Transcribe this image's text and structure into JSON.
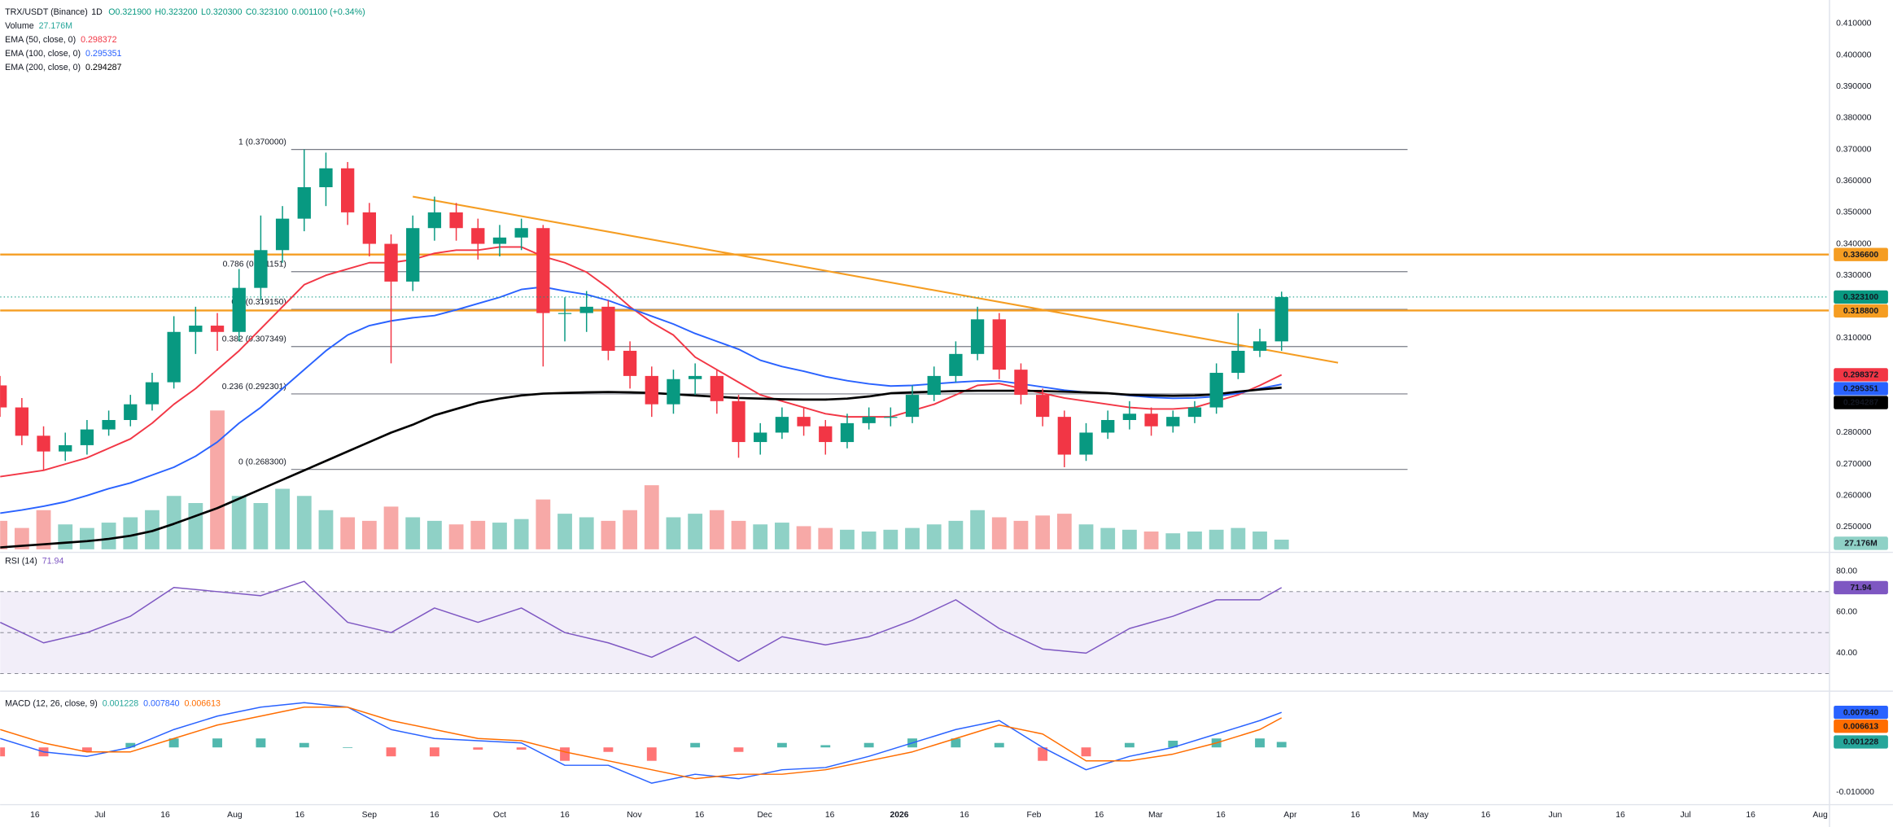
{
  "chart_data": [
    {
      "type": "candlestick",
      "title": "TRX/USDT (Binance)",
      "interval": "1D",
      "ohlc_legend": [
        "O0.321900",
        "H0.323200",
        "L0.320300",
        "C0.323100",
        "0.001100 (+0.34%)"
      ],
      "x": [
        "2025-06-08",
        "2025-06-13",
        "2025-06-18",
        "2025-06-23",
        "2025-06-28",
        "2025-07-03",
        "2025-07-08",
        "2025-07-13",
        "2025-07-18",
        "2025-07-23",
        "2025-07-28",
        "2025-08-02",
        "2025-08-07",
        "2025-08-12",
        "2025-08-17",
        "2025-08-22",
        "2025-08-27",
        "2025-09-01",
        "2025-09-06",
        "2025-09-11",
        "2025-09-16",
        "2025-09-21",
        "2025-09-26",
        "2025-10-01",
        "2025-10-06",
        "2025-10-11",
        "2025-10-16",
        "2025-10-21",
        "2025-10-26",
        "2025-10-31",
        "2025-11-05",
        "2025-11-10",
        "2025-11-15",
        "2025-11-20",
        "2025-11-25",
        "2025-11-30",
        "2025-12-05",
        "2025-12-10",
        "2025-12-15",
        "2025-12-20",
        "2025-12-25",
        "2025-12-30",
        "2026-01-04",
        "2026-01-09",
        "2026-01-14",
        "2026-01-19",
        "2026-01-24",
        "2026-01-29",
        "2026-02-03",
        "2026-02-08",
        "2026-02-13",
        "2026-02-18",
        "2026-02-23",
        "2026-02-28",
        "2026-03-05",
        "2026-03-10",
        "2026-03-15",
        "2026-03-20",
        "2026-03-25",
        "2026-03-30"
      ],
      "open": [
        0.295,
        0.288,
        0.279,
        0.274,
        0.276,
        0.281,
        0.284,
        0.289,
        0.296,
        0.312,
        0.314,
        0.312,
        0.326,
        0.338,
        0.348,
        0.358,
        0.364,
        0.35,
        0.34,
        0.328,
        0.345,
        0.35,
        0.345,
        0.34,
        0.342,
        0.345,
        0.318,
        0.318,
        0.32,
        0.306,
        0.298,
        0.289,
        0.297,
        0.298,
        0.29,
        0.277,
        0.28,
        0.285,
        0.282,
        0.277,
        0.283,
        0.285,
        0.285,
        0.292,
        0.298,
        0.305,
        0.316,
        0.3,
        0.292,
        0.285,
        0.273,
        0.28,
        0.284,
        0.286,
        0.282,
        0.285,
        0.288,
        0.299,
        0.306,
        0.309
      ],
      "high": [
        0.298,
        0.291,
        0.282,
        0.28,
        0.284,
        0.287,
        0.292,
        0.299,
        0.317,
        0.32,
        0.318,
        0.332,
        0.349,
        0.352,
        0.37,
        0.369,
        0.366,
        0.353,
        0.343,
        0.349,
        0.355,
        0.353,
        0.348,
        0.346,
        0.348,
        0.346,
        0.323,
        0.325,
        0.322,
        0.309,
        0.301,
        0.3,
        0.302,
        0.3,
        0.292,
        0.283,
        0.288,
        0.288,
        0.284,
        0.286,
        0.288,
        0.288,
        0.295,
        0.301,
        0.309,
        0.32,
        0.318,
        0.302,
        0.294,
        0.287,
        0.283,
        0.287,
        0.29,
        0.288,
        0.287,
        0.29,
        0.302,
        0.318,
        0.313,
        0.3248
      ],
      "low": [
        0.285,
        0.276,
        0.268,
        0.271,
        0.273,
        0.279,
        0.282,
        0.287,
        0.294,
        0.305,
        0.306,
        0.309,
        0.322,
        0.334,
        0.344,
        0.352,
        0.346,
        0.336,
        0.302,
        0.325,
        0.341,
        0.341,
        0.335,
        0.336,
        0.338,
        0.301,
        0.309,
        0.312,
        0.303,
        0.294,
        0.285,
        0.286,
        0.292,
        0.286,
        0.272,
        0.273,
        0.278,
        0.279,
        0.273,
        0.275,
        0.281,
        0.282,
        0.283,
        0.29,
        0.296,
        0.303,
        0.297,
        0.289,
        0.282,
        0.269,
        0.271,
        0.278,
        0.281,
        0.279,
        0.28,
        0.283,
        0.286,
        0.297,
        0.304,
        0.306
      ],
      "close": [
        0.288,
        0.279,
        0.274,
        0.276,
        0.281,
        0.284,
        0.289,
        0.296,
        0.312,
        0.314,
        0.312,
        0.326,
        0.338,
        0.348,
        0.358,
        0.364,
        0.35,
        0.34,
        0.328,
        0.345,
        0.35,
        0.345,
        0.34,
        0.342,
        0.345,
        0.318,
        0.318,
        0.32,
        0.306,
        0.298,
        0.289,
        0.297,
        0.298,
        0.29,
        0.277,
        0.28,
        0.285,
        0.282,
        0.277,
        0.283,
        0.285,
        0.285,
        0.292,
        0.298,
        0.305,
        0.316,
        0.3,
        0.292,
        0.285,
        0.273,
        0.28,
        0.284,
        0.286,
        0.282,
        0.285,
        0.288,
        0.299,
        0.306,
        0.309,
        0.3231
      ],
      "close_label": "0.323100",
      "up_color": "#089981",
      "down_color": "#f23645",
      "volume": {
        "name": "Volume",
        "up_color": "#8fd1c6",
        "down_color": "#f7a9a7",
        "value_label": "27.176M",
        "values": [
          80,
          60,
          110,
          70,
          60,
          75,
          90,
          110,
          150,
          130,
          390,
          150,
          130,
          170,
          150,
          110,
          90,
          80,
          120,
          90,
          80,
          70,
          80,
          75,
          85,
          140,
          100,
          90,
          80,
          110,
          180,
          90,
          100,
          110,
          80,
          70,
          75,
          65,
          60,
          55,
          50,
          55,
          60,
          70,
          80,
          110,
          90,
          80,
          95,
          100,
          70,
          60,
          55,
          50,
          45,
          50,
          55,
          60,
          50,
          27.176
        ]
      },
      "ema": [
        {
          "name": "EMA (50, close, 0)",
          "color": "#f23645",
          "value_label": "0.298372",
          "values": [
            0.266,
            0.267,
            0.268,
            0.27,
            0.272,
            0.275,
            0.278,
            0.283,
            0.289,
            0.294,
            0.3,
            0.306,
            0.313,
            0.32,
            0.327,
            0.33,
            0.332,
            0.334,
            0.334,
            0.335,
            0.337,
            0.338,
            0.338,
            0.339,
            0.339,
            0.336,
            0.334,
            0.331,
            0.326,
            0.32,
            0.315,
            0.311,
            0.304,
            0.3,
            0.296,
            0.292,
            0.29,
            0.288,
            0.286,
            0.285,
            0.285,
            0.285,
            0.287,
            0.289,
            0.292,
            0.295,
            0.2956,
            0.294,
            0.2925,
            0.291,
            0.29,
            0.289,
            0.288,
            0.2875,
            0.2875,
            0.288,
            0.29,
            0.292,
            0.295,
            0.298372
          ]
        },
        {
          "name": "EMA (100, close, 0)",
          "color": "#2962ff",
          "value_label": "0.295351",
          "values": [
            0.2544,
            0.2554,
            0.2566,
            0.258,
            0.26,
            0.2622,
            0.264,
            0.2665,
            0.269,
            0.2725,
            0.277,
            0.283,
            0.288,
            0.294,
            0.3,
            0.306,
            0.311,
            0.314,
            0.3155,
            0.3165,
            0.3172,
            0.319,
            0.321,
            0.323,
            0.3255,
            0.3263,
            0.325,
            0.3239,
            0.322,
            0.3195,
            0.317,
            0.3145,
            0.3115,
            0.309,
            0.3065,
            0.303,
            0.301,
            0.2995,
            0.2978,
            0.2965,
            0.2955,
            0.2948,
            0.295,
            0.2955,
            0.296,
            0.2964,
            0.2964,
            0.2955,
            0.2945,
            0.2935,
            0.2928,
            0.2925,
            0.2918,
            0.2912,
            0.2909,
            0.291,
            0.2915,
            0.2925,
            0.294,
            0.295351
          ]
        },
        {
          "name": "EMA (200, close, 0)",
          "color": "#000000",
          "value_label": "0.294287",
          "values": [
            0.2435,
            0.244,
            0.2445,
            0.245,
            0.2455,
            0.2462,
            0.2472,
            0.2487,
            0.251,
            0.2535,
            0.256,
            0.259,
            0.262,
            0.265,
            0.268,
            0.271,
            0.274,
            0.277,
            0.28,
            0.2825,
            0.2855,
            0.2875,
            0.2895,
            0.2908,
            0.2918,
            0.2924,
            0.2926,
            0.2928,
            0.2929,
            0.2928,
            0.2926,
            0.2922,
            0.2918,
            0.2914,
            0.291,
            0.2908,
            0.2906,
            0.2905,
            0.2905,
            0.2908,
            0.2915,
            0.2925,
            0.2928,
            0.293,
            0.2932,
            0.2933,
            0.2933,
            0.2933,
            0.2932,
            0.293,
            0.2928,
            0.2925,
            0.292,
            0.2918,
            0.2917,
            0.2918,
            0.2922,
            0.293,
            0.2937,
            0.294287
          ]
        }
      ],
      "horizontal_lines": [
        {
          "value": 0.3366,
          "label": "0.336600"
        },
        {
          "value": 0.3188,
          "label": "0.318800"
        }
      ],
      "horizontal_line_color": "#f59d22",
      "fibonacci": {
        "color": "#787b86",
        "x": [
          "2025-08-14",
          "2026-04-28"
        ],
        "levels": [
          {
            "value": 0.37,
            "label": "1 (0.370000)"
          },
          {
            "value": 0.331151,
            "label": "0.786 (0.331151)"
          },
          {
            "value": 0.31915,
            "label": "0.5 (0.319150)"
          },
          {
            "value": 0.307349,
            "label": "0.382 (0.307349)"
          },
          {
            "value": 0.292301,
            "label": "0.236 (0.292301)"
          },
          {
            "value": 0.2683,
            "label": "0 (0.268300)"
          }
        ]
      },
      "trendline": {
        "color": "#f59d22",
        "x": [
          "2025-09-11",
          "2026-04-12"
        ],
        "y": [
          0.355,
          0.3022
        ]
      },
      "xlim": [
        "2025-06-08",
        "2026-08-03"
      ],
      "ylim": [
        0.2429,
        0.4175
      ],
      "yticks": [
        {
          "value": 0.41,
          "label": "0.410000"
        },
        {
          "value": 0.4,
          "label": "0.400000"
        },
        {
          "value": 0.39,
          "label": "0.390000"
        },
        {
          "value": 0.38,
          "label": "0.380000"
        },
        {
          "value": 0.37,
          "label": "0.370000"
        },
        {
          "value": 0.36,
          "label": "0.360000"
        },
        {
          "value": 0.35,
          "label": "0.350000"
        },
        {
          "value": 0.34,
          "label": "0.340000"
        },
        {
          "value": 0.33,
          "label": "0.330000"
        },
        {
          "value": 0.31,
          "label": "0.310000"
        },
        {
          "value": 0.28,
          "label": "0.280000"
        },
        {
          "value": 0.27,
          "label": "0.270000"
        },
        {
          "value": 0.26,
          "label": "0.260000"
        },
        {
          "value": 0.25,
          "label": "0.250000"
        }
      ],
      "xticks": [
        {
          "value": "2025-06-16",
          "label": "16"
        },
        {
          "value": "2025-07-01",
          "label": "Jul"
        },
        {
          "value": "2025-07-16",
          "label": "16"
        },
        {
          "value": "2025-08-01",
          "label": "Aug"
        },
        {
          "value": "2025-08-16",
          "label": "16"
        },
        {
          "value": "2025-09-01",
          "label": "Sep"
        },
        {
          "value": "2025-09-16",
          "label": "16"
        },
        {
          "value": "2025-10-01",
          "label": "Oct"
        },
        {
          "value": "2025-10-16",
          "label": "16"
        },
        {
          "value": "2025-11-01",
          "label": "Nov"
        },
        {
          "value": "2025-11-16",
          "label": "16"
        },
        {
          "value": "2025-12-01",
          "label": "Dec"
        },
        {
          "value": "2025-12-16",
          "label": "16"
        },
        {
          "value": "2026-01-01",
          "label": "2026"
        },
        {
          "value": "2026-01-16",
          "label": "16"
        },
        {
          "value": "2026-02-01",
          "label": "Feb"
        },
        {
          "value": "2026-02-16",
          "label": "16"
        },
        {
          "value": "2026-03-01",
          "label": "Mar"
        },
        {
          "value": "2026-03-16",
          "label": "16"
        },
        {
          "value": "2026-04-01",
          "label": "Apr"
        },
        {
          "value": "2026-04-16",
          "label": "16"
        },
        {
          "value": "2026-05-01",
          "label": "May"
        },
        {
          "value": "2026-05-16",
          "label": "16"
        },
        {
          "value": "2026-06-01",
          "label": "Jun"
        },
        {
          "value": "2026-06-16",
          "label": "16"
        },
        {
          "value": "2026-07-01",
          "label": "Jul"
        },
        {
          "value": "2026-07-16",
          "label": "16"
        },
        {
          "value": "2026-08-01",
          "label": "Aug"
        }
      ]
    },
    {
      "type": "line",
      "title": "RSI (14)",
      "color": "#7e57c2",
      "band_color": "rgba(126,87,194,0.1)",
      "x": [
        "2025-06-08",
        "2025-06-18",
        "2025-06-28",
        "2025-07-08",
        "2025-07-18",
        "2025-07-28",
        "2025-08-07",
        "2025-08-17",
        "2025-08-27",
        "2025-09-06",
        "2025-09-16",
        "2025-09-26",
        "2025-10-06",
        "2025-10-16",
        "2025-10-26",
        "2025-11-05",
        "2025-11-15",
        "2025-11-25",
        "2025-12-05",
        "2025-12-15",
        "2025-12-25",
        "2026-01-04",
        "2026-01-14",
        "2026-01-24",
        "2026-02-03",
        "2026-02-13",
        "2026-02-23",
        "2026-03-05",
        "2026-03-15",
        "2026-03-25",
        "2026-03-30"
      ],
      "values": [
        55,
        45,
        50,
        58,
        72,
        70,
        68,
        75,
        55,
        50,
        62,
        55,
        62,
        50,
        45,
        38,
        48,
        36,
        48,
        44,
        48,
        56,
        66,
        52,
        42,
        40,
        52,
        58,
        66,
        66,
        71.94
      ],
      "value_label": "71.94",
      "levels": [
        70,
        50,
        30
      ],
      "ylim": [
        22.9,
        86.5
      ],
      "yticks": [
        {
          "value": 80,
          "label": "80.00"
        },
        {
          "value": 60,
          "label": "60.00"
        },
        {
          "value": 40,
          "label": "40.00"
        }
      ]
    },
    {
      "type": "macd",
      "title": "MACD (12, 26, close, 9)",
      "x": [
        "2025-06-08",
        "2025-06-18",
        "2025-06-28",
        "2025-07-08",
        "2025-07-18",
        "2025-07-28",
        "2025-08-07",
        "2025-08-17",
        "2025-08-27",
        "2025-09-06",
        "2025-09-16",
        "2025-09-26",
        "2025-10-06",
        "2025-10-16",
        "2025-10-26",
        "2025-11-05",
        "2025-11-15",
        "2025-11-25",
        "2025-12-05",
        "2025-12-15",
        "2025-12-25",
        "2026-01-04",
        "2026-01-14",
        "2026-01-24",
        "2026-02-03",
        "2026-02-13",
        "2026-02-23",
        "2026-03-05",
        "2026-03-15",
        "2026-03-25",
        "2026-03-30"
      ],
      "histogram": {
        "up_color": "#26a69a",
        "down_color": "#ff5252",
        "value_label": "0.001228",
        "values": [
          -0.002,
          -0.002,
          -0.001,
          0.001,
          0.002,
          0.002,
          0.002,
          0.001,
          0,
          -0.002,
          -0.002,
          -0.0005,
          -0.0005,
          -0.003,
          -0.001,
          -0.003,
          0.001,
          -0.001,
          0.001,
          0.0005,
          0.001,
          0.002,
          0.002,
          0.001,
          -0.003,
          -0.002,
          0.001,
          0.0015,
          0.002,
          0.002,
          0.001228
        ]
      },
      "macd": {
        "color": "#2962ff",
        "value_label": "0.007840",
        "values": [
          0.002,
          -0.001,
          -0.002,
          0,
          0.004,
          0.007,
          0.009,
          0.01,
          0.009,
          0.004,
          0.002,
          0.0015,
          0.001,
          -0.004,
          -0.004,
          -0.008,
          -0.006,
          -0.007,
          -0.005,
          -0.0045,
          -0.002,
          0.001,
          0.004,
          0.006,
          0,
          -0.005,
          -0.002,
          0,
          0.003,
          0.006,
          0.00784
        ]
      },
      "signal": {
        "color": "#ff6d00",
        "value_label": "0.006613",
        "values": [
          0.004,
          0.001,
          -0.001,
          -0.001,
          0.002,
          0.005,
          0.007,
          0.009,
          0.009,
          0.006,
          0.004,
          0.002,
          0.0015,
          -0.001,
          -0.003,
          -0.005,
          -0.007,
          -0.006,
          -0.006,
          -0.005,
          -0.003,
          -0.001,
          0.002,
          0.005,
          0.003,
          -0.003,
          -0.003,
          -0.0015,
          0.001,
          0.004,
          0.006613
        ]
      },
      "ylim": [
        -0.0124,
        0.0119
      ],
      "yticks": [
        {
          "value": -0.01,
          "label": "-0.010000"
        }
      ]
    }
  ]
}
